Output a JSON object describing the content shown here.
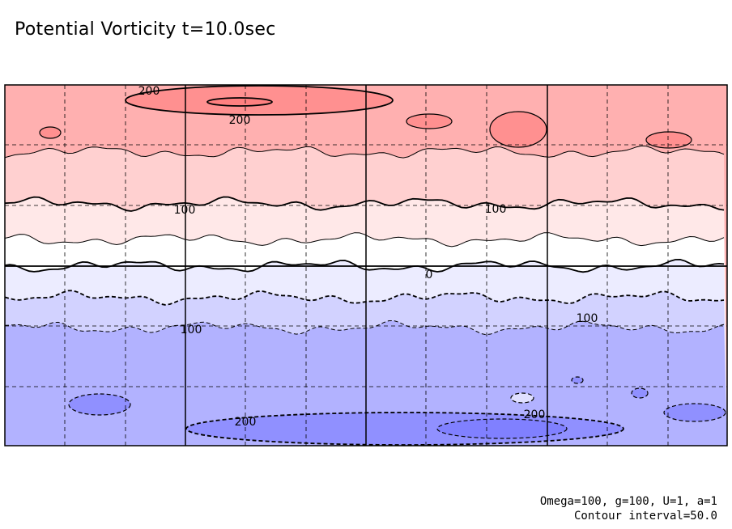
{
  "title": "Potential Vorticity t=10.0sec",
  "footer": {
    "params": "Omega=100, g=100, U=1, a=1",
    "interval": "Contour interval=50.0"
  },
  "chart_data": {
    "type": "heatmap",
    "title": "Potential Vorticity t=10.0sec",
    "contour_interval": 50.0,
    "grid": true,
    "bands": [
      {
        "level": 200,
        "color": "#ff9090"
      },
      {
        "level": 150,
        "color": "#ffb0b0"
      },
      {
        "level": 100,
        "color": "#ffd0d0"
      },
      {
        "level": 50,
        "color": "#ffe8e8"
      },
      {
        "level": 0,
        "color": "#ffffff"
      },
      {
        "level": -50,
        "color": "#ececff"
      },
      {
        "level": -100,
        "color": "#d2d2ff"
      },
      {
        "level": -150,
        "color": "#b2b2ff"
      },
      {
        "level": -200,
        "color": "#9090ff"
      }
    ],
    "contour_labels": [
      {
        "text": "200"
      },
      {
        "text": "200"
      },
      {
        "text": "100"
      },
      {
        "text": "100"
      },
      {
        "text": "0"
      },
      {
        "text": "100"
      },
      {
        "text": "100"
      },
      {
        "text": "200"
      },
      {
        "text": "200"
      }
    ]
  }
}
